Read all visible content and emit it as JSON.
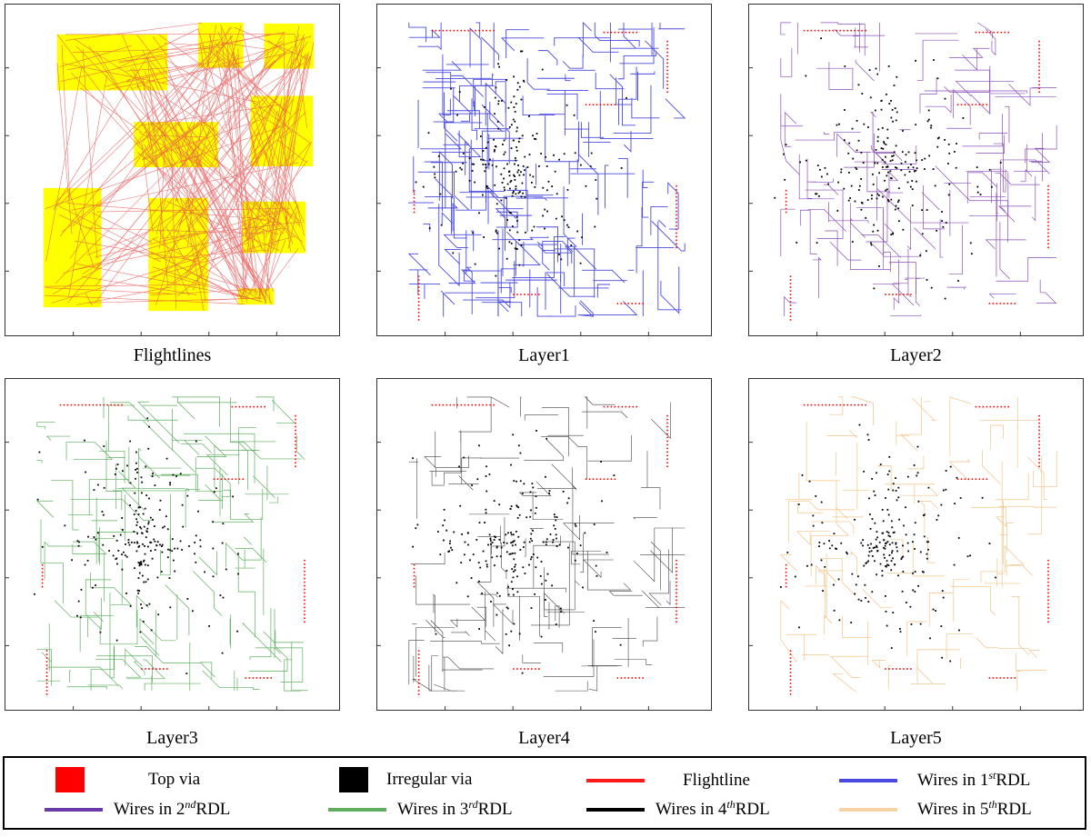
{
  "panels": [
    {
      "id": "flightlines",
      "title": "Flightlines",
      "wire_color": "#e64646"
    },
    {
      "id": "layer1",
      "title": "Layer1",
      "wire_color": "#4a4ae0"
    },
    {
      "id": "layer2",
      "title": "Layer2",
      "wire_color": "#8a4fb8"
    },
    {
      "id": "layer3",
      "title": "Layer3",
      "wire_color": "#5fae5f"
    },
    {
      "id": "layer4",
      "title": "Layer4",
      "wire_color": "#444444"
    },
    {
      "id": "layer5",
      "title": "Layer5",
      "wire_color": "#f2c48a"
    }
  ],
  "colors": {
    "chip_fill": "#ffff00",
    "flightline": "#e64646",
    "top_via": "#ff0000",
    "irregular_via": "#000000"
  },
  "legend": {
    "top_via": "Top via",
    "irregular_via": "Irregular via",
    "flightline": "Flightline",
    "wires1": {
      "prefix": "Wires in 1",
      "sup": "st",
      "suffix": "RDL",
      "color": "#4a4ae0"
    },
    "wires2": {
      "prefix": "Wires in 2",
      "sup": "nd",
      "suffix": "RDL",
      "color": "#6a3aa8"
    },
    "wires3": {
      "prefix": "Wires in 3",
      "sup": "rd",
      "suffix": "RDL",
      "color": "#5fae5f"
    },
    "wires4": {
      "prefix": "Wires in 4",
      "sup": "th",
      "suffix": "RDL",
      "color": "#000000"
    },
    "wires5": {
      "prefix": "Wires in 5",
      "sup": "th",
      "suffix": "RDL",
      "color": "#f6d3a4"
    }
  }
}
